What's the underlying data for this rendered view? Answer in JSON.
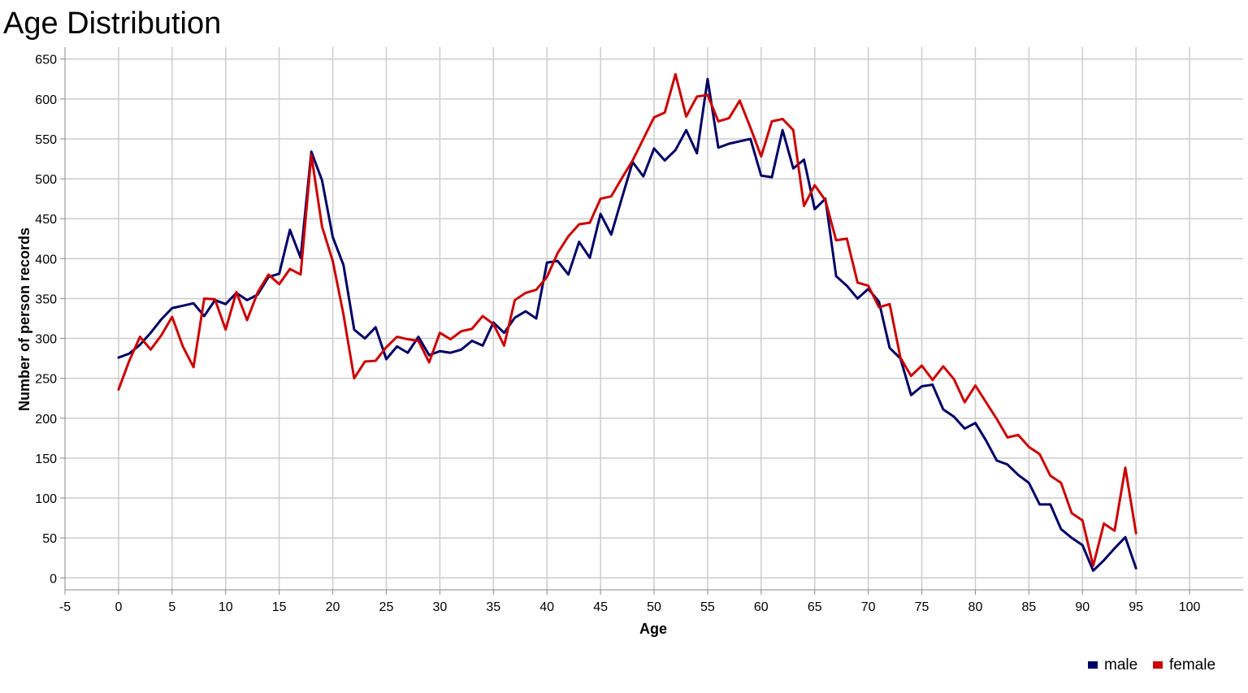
{
  "chart_data": {
    "type": "line",
    "title": "Age Distribution",
    "xlabel": "Age",
    "ylabel": "Number of person records",
    "xlim": [
      -5,
      105
    ],
    "ylim": [
      -15,
      665
    ],
    "xticks": [
      -5,
      0,
      5,
      10,
      15,
      20,
      25,
      30,
      35,
      40,
      45,
      50,
      55,
      60,
      65,
      70,
      75,
      80,
      85,
      90,
      95,
      100
    ],
    "yticks": [
      0,
      50,
      100,
      150,
      200,
      250,
      300,
      350,
      400,
      450,
      500,
      550,
      600,
      650
    ],
    "grid": true,
    "legend_position": "bottom-right",
    "x": [
      0,
      1,
      2,
      3,
      4,
      5,
      6,
      7,
      8,
      9,
      10,
      11,
      12,
      13,
      14,
      15,
      16,
      17,
      18,
      19,
      20,
      21,
      22,
      23,
      24,
      25,
      26,
      27,
      28,
      29,
      30,
      31,
      32,
      33,
      34,
      35,
      36,
      37,
      38,
      39,
      40,
      41,
      42,
      43,
      44,
      45,
      46,
      47,
      48,
      49,
      50,
      51,
      52,
      53,
      54,
      55,
      56,
      57,
      58,
      59,
      60,
      61,
      62,
      63,
      64,
      65,
      66,
      67,
      68,
      69,
      70,
      71,
      72,
      73,
      74,
      75,
      76,
      77,
      78,
      79,
      80,
      81,
      82,
      83,
      84,
      85,
      86,
      87,
      88,
      89,
      90,
      91,
      92,
      93,
      94,
      95
    ],
    "series": [
      {
        "name": "male",
        "color": "#000066",
        "values": [
          276,
          281,
          292,
          307,
          324,
          338,
          341,
          344,
          328,
          348,
          343,
          357,
          348,
          355,
          377,
          381,
          436,
          401,
          534,
          498,
          427,
          392,
          311,
          300,
          314,
          274,
          290,
          282,
          302,
          279,
          284,
          282,
          286,
          297,
          291,
          320,
          307,
          326,
          334,
          325,
          395,
          397,
          380,
          421,
          401,
          456,
          430,
          476,
          521,
          503,
          538,
          523,
          536,
          561,
          532,
          625,
          539,
          544,
          547,
          550,
          504,
          502,
          561,
          513,
          524,
          462,
          475,
          378,
          366,
          350,
          362,
          346,
          288,
          275,
          229,
          240,
          242,
          211,
          202,
          187,
          194,
          172,
          147,
          142,
          129,
          119,
          92,
          92,
          61,
          50,
          41,
          9,
          22,
          37,
          51,
          12
        ]
      },
      {
        "name": "female",
        "color": "#cc0000",
        "values": [
          236,
          272,
          302,
          286,
          304,
          327,
          290,
          264,
          350,
          349,
          311,
          358,
          323,
          358,
          380,
          368,
          387,
          380,
          530,
          440,
          397,
          330,
          250,
          271,
          272,
          289,
          302,
          299,
          297,
          270,
          307,
          299,
          309,
          312,
          328,
          318,
          291,
          348,
          357,
          361,
          377,
          407,
          428,
          443,
          445,
          475,
          478,
          501,
          523,
          550,
          577,
          583,
          631,
          578,
          603,
          605,
          572,
          576,
          598,
          564,
          528,
          572,
          575,
          561,
          466,
          492,
          473,
          423,
          425,
          370,
          366,
          339,
          343,
          276,
          253,
          266,
          248,
          265,
          249,
          220,
          241,
          220,
          199,
          176,
          179,
          164,
          155,
          128,
          119,
          81,
          72,
          15,
          68,
          59,
          138,
          56
        ]
      }
    ]
  }
}
